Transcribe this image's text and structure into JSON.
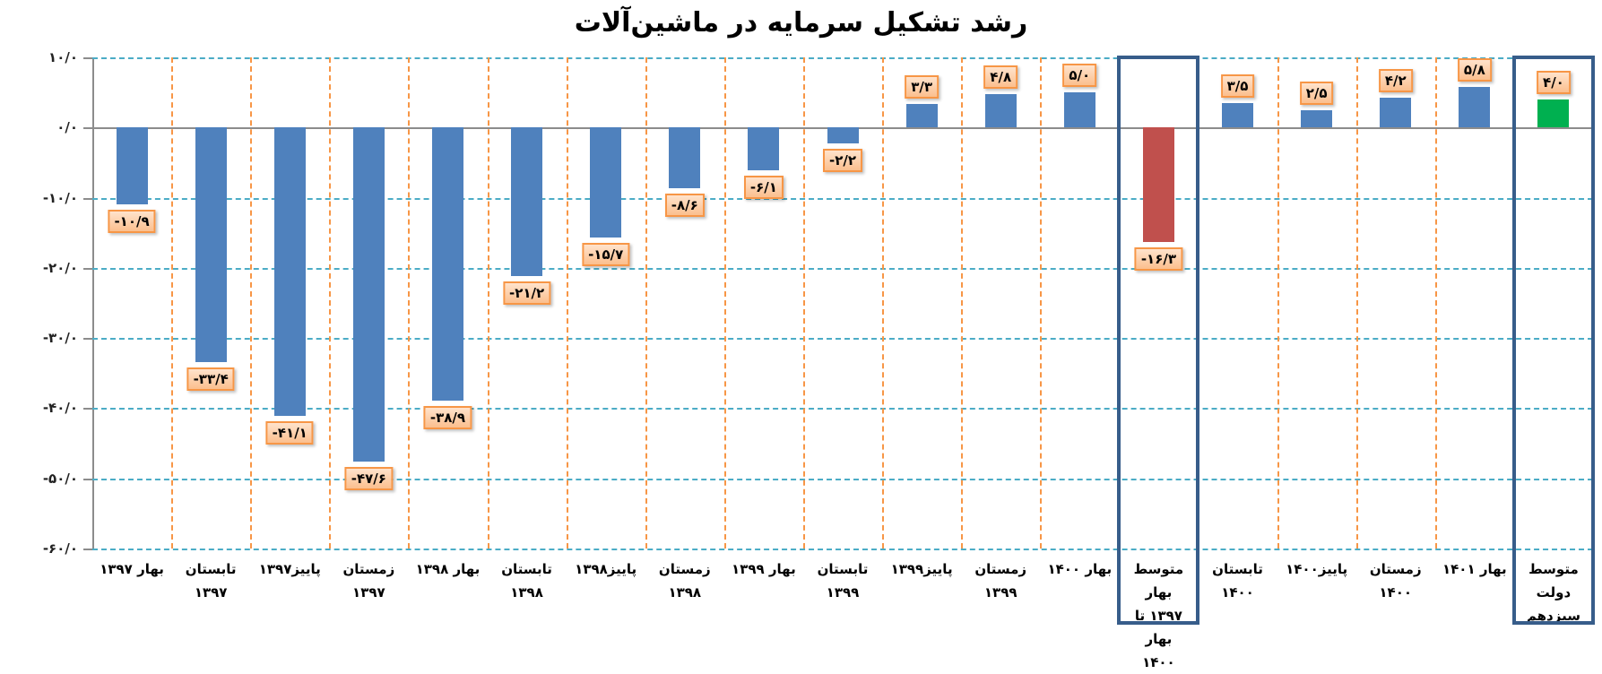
{
  "chart_data": {
    "type": "bar",
    "title": "رشد تشکیل سرمایه در ماشین‌آلات",
    "xlabel": "",
    "ylabel": "",
    "ylim": [
      -60,
      10
    ],
    "yticks": [
      10,
      0,
      -10,
      -20,
      -30,
      -40,
      -50,
      -60
    ],
    "ytick_labels": [
      "۱۰/۰",
      "۰/۰",
      "-۱۰/۰",
      "-۲۰/۰",
      "-۳۰/۰",
      "-۴۰/۰",
      "-۵۰/۰",
      "-۶۰/۰"
    ],
    "grid": true,
    "legend": "none",
    "categories": [
      "بهار ۱۳۹۷",
      "تابستان ۱۳۹۷",
      "پاییز۱۳۹۷",
      "زمستان ۱۳۹۷",
      "بهار ۱۳۹۸",
      "تابستان ۱۳۹۸",
      "پاییز۱۳۹۸",
      "زمستان ۱۳۹۸",
      "بهار ۱۳۹۹",
      "تابستان ۱۳۹۹",
      "پاییز۱۳۹۹",
      "زمستان ۱۳۹۹",
      "بهار ۱۴۰۰",
      "متوسط بهار ۱۳۹۷ تا بهار ۱۴۰۰",
      "تابستان ۱۴۰۰",
      "پاییز۱۴۰۰",
      "زمستان ۱۴۰۰",
      "بهار ۱۴۰۱",
      "متوسط دولت سیزدهم"
    ],
    "values": [
      -10.9,
      -33.4,
      -41.1,
      -47.6,
      -38.9,
      -21.2,
      -15.7,
      -8.6,
      -6.1,
      -2.2,
      3.3,
      4.8,
      5.0,
      -16.3,
      3.5,
      2.5,
      4.2,
      5.8,
      4.0
    ],
    "value_labels": [
      "-۱۰/۹",
      "-۳۳/۴",
      "-۴۱/۱",
      "-۴۷/۶",
      "-۳۸/۹",
      "-۲۱/۲",
      "-۱۵/۷",
      "-۸/۶",
      "-۶/۱",
      "-۲/۲",
      "۳/۳",
      "۴/۸",
      "۵/۰",
      "-۱۶/۳",
      "۳/۵",
      "۲/۵",
      "۴/۲",
      "۵/۸",
      "۴/۰"
    ],
    "bar_colors": [
      "#4F81BD",
      "#4F81BD",
      "#4F81BD",
      "#4F81BD",
      "#4F81BD",
      "#4F81BD",
      "#4F81BD",
      "#4F81BD",
      "#4F81BD",
      "#4F81BD",
      "#4F81BD",
      "#4F81BD",
      "#4F81BD",
      "#C0504D",
      "#4F81BD",
      "#4F81BD",
      "#4F81BD",
      "#4F81BD",
      "#00B050"
    ],
    "highlighted_categories": [
      13,
      18
    ],
    "highlight_border_color": "#375D8A"
  },
  "x_label_lines": {
    "13": [
      "متوسط بهار",
      "۱۳۹۷ تا بهار",
      "۱۴۰۰"
    ],
    "18": [
      "متوسط دولت",
      "سیزدهم"
    ]
  }
}
